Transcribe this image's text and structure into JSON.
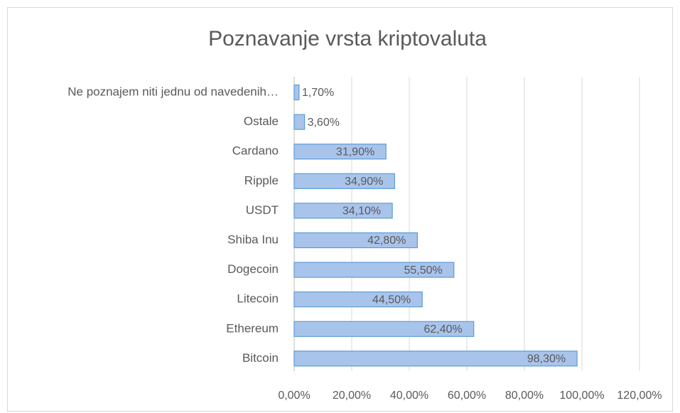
{
  "chart_data": {
    "type": "bar",
    "orientation": "horizontal",
    "title": "Poznavanje vrsta kriptovaluta",
    "categories": [
      "Ne poznajem niti jednu od navedenih…",
      "Ostale",
      "Cardano",
      "Ripple",
      "USDT",
      "Shiba Inu",
      "Dogecoin",
      "Litecoin",
      "Ethereum",
      "Bitcoin"
    ],
    "values": [
      1.7,
      3.6,
      31.9,
      34.9,
      34.1,
      42.8,
      55.5,
      44.5,
      62.4,
      98.3
    ],
    "value_labels": [
      "1,70%",
      "3,60%",
      "31,90%",
      "34,90%",
      "34,10%",
      "42,80%",
      "55,50%",
      "44,50%",
      "62,40%",
      "98,30%"
    ],
    "color": "#a9c4eb",
    "xlim": [
      0,
      120
    ],
    "xticks": [
      {
        "value": 0,
        "label": "0,00%"
      },
      {
        "value": 20,
        "label": "20,00%"
      },
      {
        "value": 40,
        "label": "40,00%"
      },
      {
        "value": 60,
        "label": "60,00%"
      },
      {
        "value": 80,
        "label": "80,00%"
      },
      {
        "value": 100,
        "label": "100,00%"
      },
      {
        "value": 120,
        "label": "120,00%"
      }
    ],
    "grid": true
  }
}
